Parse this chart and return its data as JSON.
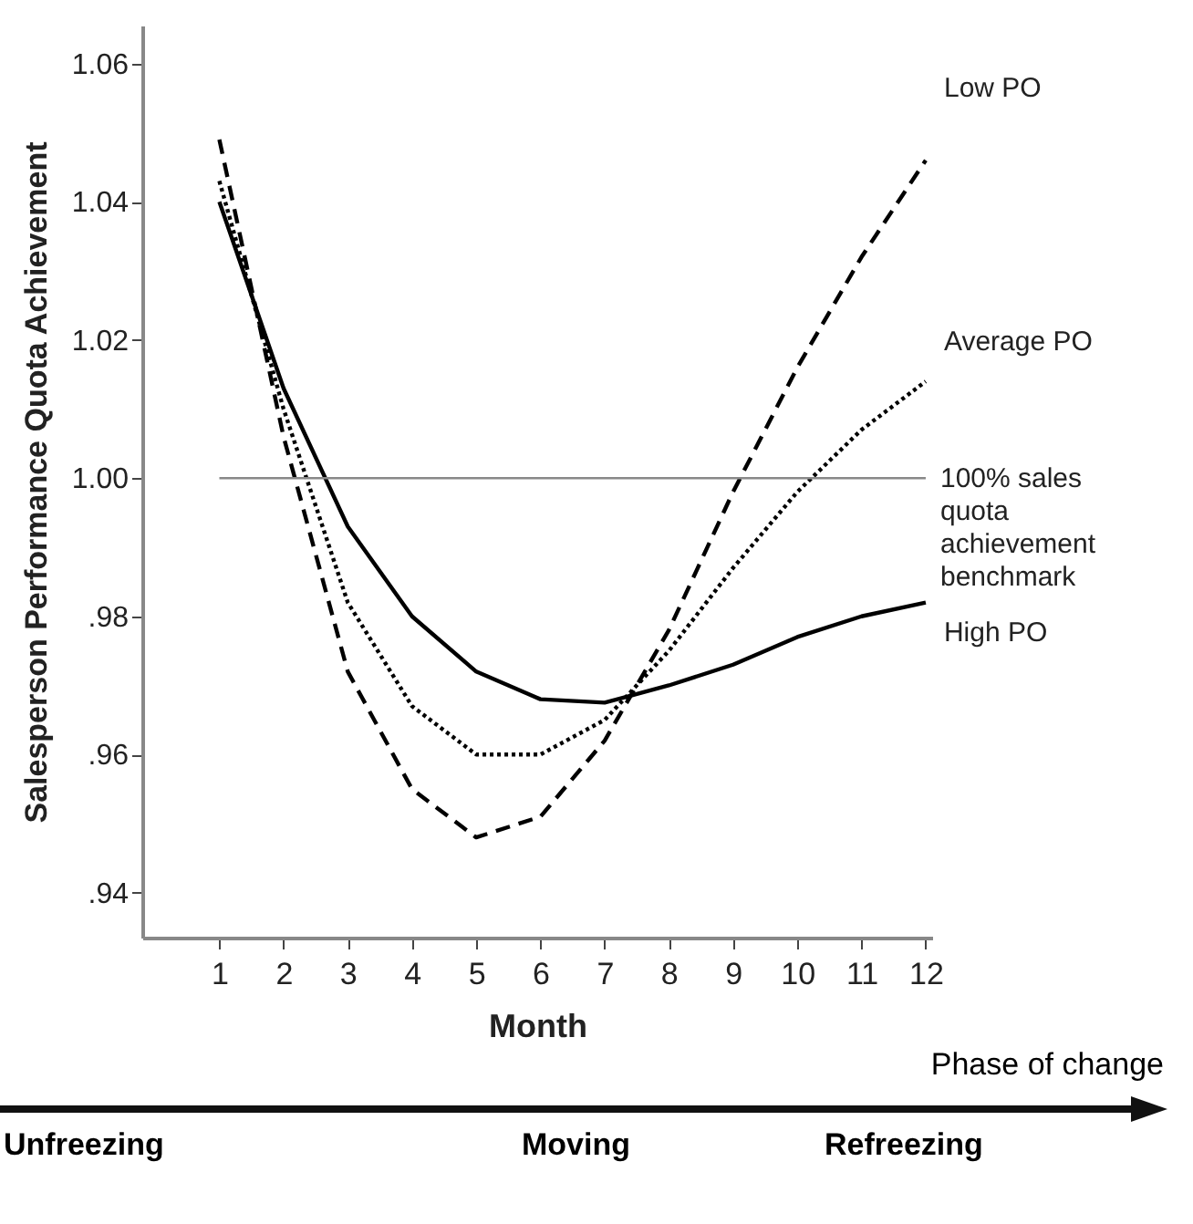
{
  "chart_data": {
    "type": "line",
    "xlabel": "Month",
    "ylabel": "Salesperson Performance Quota Achievement",
    "x": [
      1,
      2,
      3,
      4,
      5,
      6,
      7,
      8,
      9,
      10,
      11,
      12
    ],
    "series": [
      {
        "name": "Low PO",
        "color": "#000000",
        "line_style": "dashed",
        "values": [
          1.049,
          1.006,
          0.972,
          0.955,
          0.948,
          0.951,
          0.962,
          0.978,
          0.998,
          1.016,
          1.032,
          1.046
        ]
      },
      {
        "name": "Average PO",
        "color": "#000000",
        "line_style": "dotted",
        "values": [
          1.043,
          1.01,
          0.982,
          0.967,
          0.96,
          0.96,
          0.965,
          0.975,
          0.987,
          0.998,
          1.007,
          1.014
        ]
      },
      {
        "name": "High PO",
        "color": "#000000",
        "line_style": "solid",
        "values": [
          1.04,
          1.013,
          0.993,
          0.98,
          0.972,
          0.968,
          0.9675,
          0.97,
          0.973,
          0.977,
          0.98,
          0.982
        ]
      }
    ],
    "xlim": [
      -0.2,
      12.1
    ],
    "xticks": [
      1,
      2,
      3,
      4,
      5,
      6,
      7,
      8,
      9,
      10,
      11,
      12
    ],
    "ylim": [
      0.9335,
      1.0655
    ],
    "yticks": [
      {
        "value": 0.94,
        "label": ".94"
      },
      {
        "value": 0.96,
        "label": ".96"
      },
      {
        "value": 0.98,
        "label": ".98"
      },
      {
        "value": 1.0,
        "label": "1.00"
      },
      {
        "value": 1.02,
        "label": "1.02"
      },
      {
        "value": 1.04,
        "label": "1.04"
      },
      {
        "value": 1.06,
        "label": "1.06"
      }
    ],
    "ref_lines": [
      {
        "axis": "y",
        "value": 1.0,
        "label": "100% sales quota achievement benchmark",
        "color": "#888888"
      }
    ],
    "grid": false,
    "legend": false,
    "marker": "none",
    "annotations": [
      "Phase of change",
      "Unfreezing",
      "Moving",
      "Refreezing"
    ]
  }
}
